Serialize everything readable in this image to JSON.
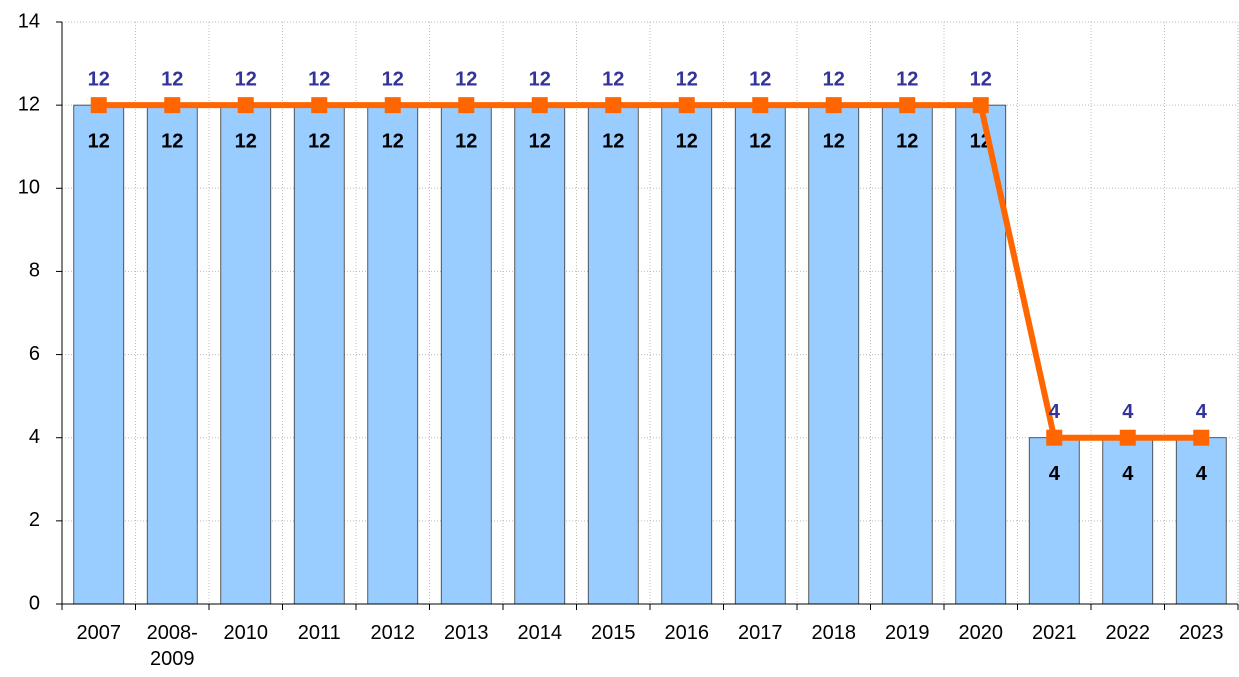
{
  "chart_data": {
    "type": "bar",
    "categories": [
      "2007",
      "2008-2009",
      "2010",
      "2011",
      "2012",
      "2013",
      "2014",
      "2015",
      "2016",
      "2017",
      "2018",
      "2019",
      "2020",
      "2021",
      "2022",
      "2023"
    ],
    "series": [
      {
        "type": "bar",
        "color": "#99ccff",
        "values": [
          12,
          12,
          12,
          12,
          12,
          12,
          12,
          12,
          12,
          12,
          12,
          12,
          12,
          4,
          4,
          4
        ]
      },
      {
        "type": "line",
        "color": "#ff6600",
        "values": [
          12,
          12,
          12,
          12,
          12,
          12,
          12,
          12,
          12,
          12,
          12,
          12,
          12,
          4,
          4,
          4
        ]
      }
    ],
    "ylim": [
      0,
      14
    ],
    "yticks": [
      0,
      2,
      4,
      6,
      8,
      10,
      12,
      14
    ],
    "grid": true
  }
}
